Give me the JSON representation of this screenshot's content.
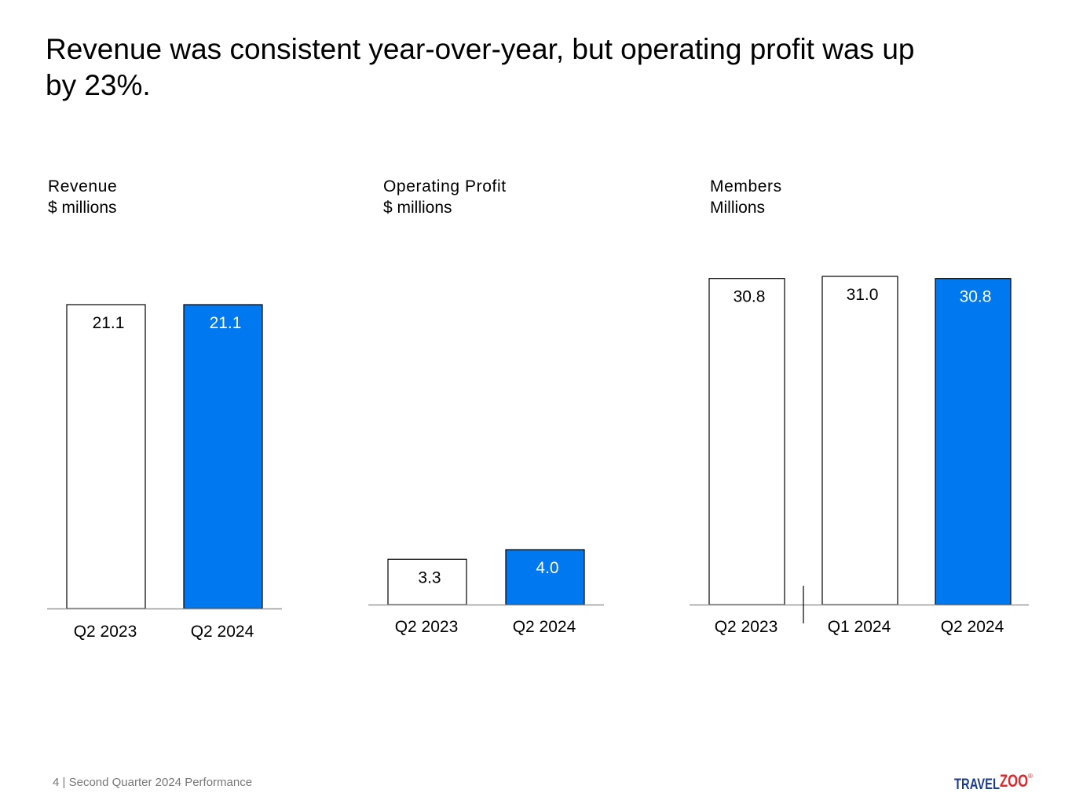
{
  "headline": "Revenue was consistent year-over-year, but operating profit was up by 23%.",
  "colors": {
    "highlight": "#0078EF",
    "plain": "#FFFFFF",
    "outline": "#000000",
    "axis": "#999999",
    "footer": "#777777",
    "logo_blue": "#1C3D8F",
    "logo_red": "#E3262B"
  },
  "chart_data": [
    {
      "type": "bar",
      "title": "Revenue",
      "subtitle": "$ millions",
      "categories": [
        "Q2 2023",
        "Q2 2024"
      ],
      "values": [
        21.1,
        21.1
      ],
      "labels": [
        "21.1",
        "21.1"
      ],
      "highlight": [
        false,
        true
      ],
      "ylim": [
        0,
        21.1
      ]
    },
    {
      "type": "bar",
      "title": "Operating Profit",
      "subtitle": "$ millions",
      "categories": [
        "Q2 2023",
        "Q2 2024"
      ],
      "values": [
        3.3,
        4.0
      ],
      "labels": [
        "3.3",
        "4.0"
      ],
      "highlight": [
        false,
        true
      ],
      "ylim": [
        0,
        21.1
      ]
    },
    {
      "type": "bar",
      "title": "Members",
      "subtitle": "Millions",
      "categories": [
        "Q2 2023",
        "Q1 2024",
        "Q2 2024"
      ],
      "values": [
        30.8,
        31.0,
        30.8
      ],
      "labels": [
        "30.8",
        "31.0",
        "30.8"
      ],
      "highlight": [
        false,
        false,
        true
      ],
      "separator_after_index": 0,
      "ylim": [
        0,
        31.0
      ]
    }
  ],
  "footer": {
    "page": "4",
    "text": "Second Quarter 2024 Performance"
  },
  "logo": {
    "part1": "TRAVEL",
    "part2": "ZOO",
    "mark": "®"
  }
}
